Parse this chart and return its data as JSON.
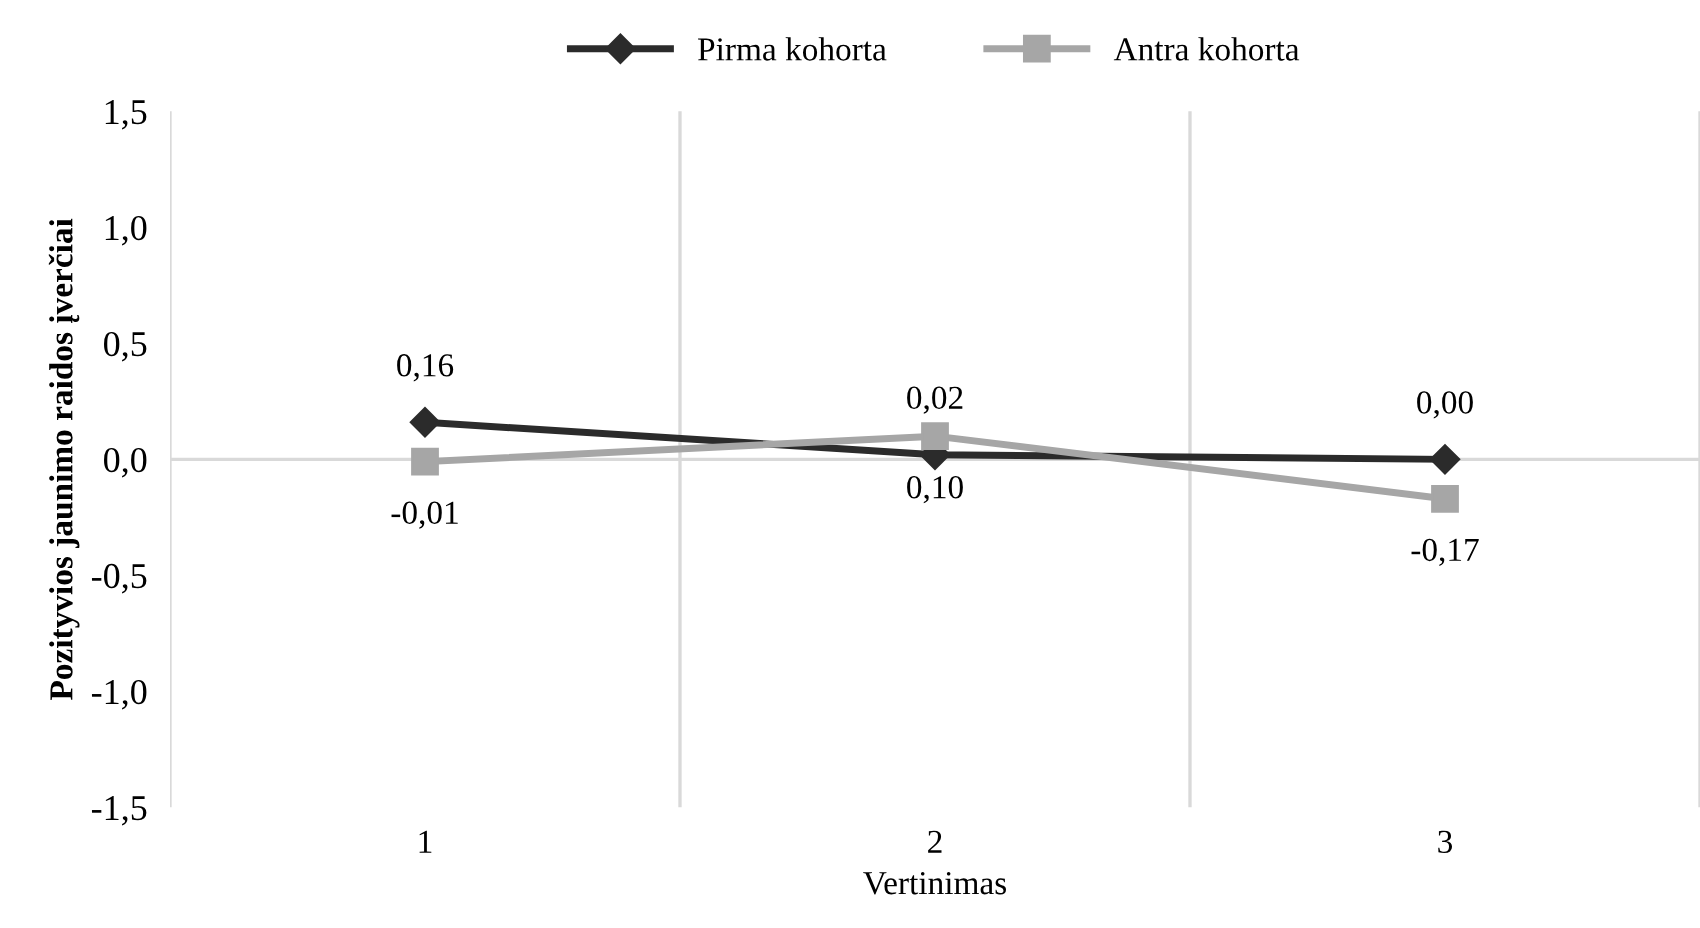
{
  "chart_data": {
    "type": "line",
    "xlabel": "Vertinimas",
    "ylabel": "Pozityvios jaunimo raidos įverčiai",
    "categories": [
      "1",
      "2",
      "3"
    ],
    "series": [
      {
        "name": "Pirma kohorta",
        "color": "#2b2b2b",
        "marker": "diamond",
        "values": [
          0.16,
          0.02,
          0.0
        ],
        "value_labels": [
          "0,16",
          "0,02",
          "0,00"
        ]
      },
      {
        "name": "Antra kohorta",
        "color": "#a6a6a6",
        "marker": "square",
        "values": [
          -0.01,
          0.1,
          -0.17
        ],
        "value_labels": [
          "-0,01",
          "0,10",
          "-0,17"
        ]
      }
    ],
    "ylim": [
      -1.5,
      1.5
    ],
    "yticks": [
      {
        "value": -1.5,
        "label": "-1,5"
      },
      {
        "value": -1.0,
        "label": "-1,0"
      },
      {
        "value": -0.5,
        "label": "-0,5"
      },
      {
        "value": 0,
        "label": "0,0"
      },
      {
        "value": 0.5,
        "label": "0,5"
      },
      {
        "value": 1.0,
        "label": "1,0"
      },
      {
        "value": 1.5,
        "label": "1,5"
      }
    ],
    "ref_lines": [
      {
        "axis": "y",
        "value": 0,
        "color": "#d9d9d9"
      }
    ],
    "grid": "x",
    "legend": "top",
    "line_style": "solid"
  }
}
